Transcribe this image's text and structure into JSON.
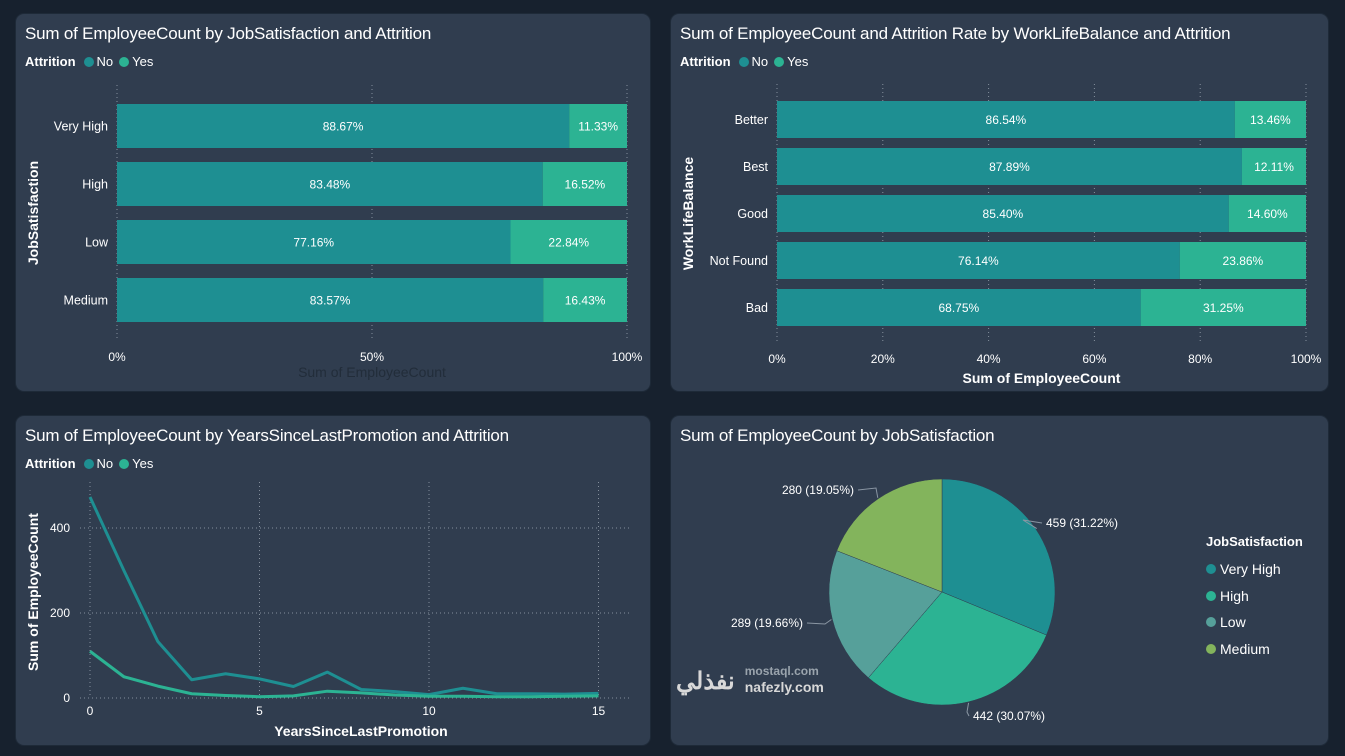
{
  "colors": {
    "no": "#1e8f92",
    "yes": "#2cb393",
    "very_high": "#1e8f92",
    "high": "#2cb393",
    "low": "#56a09a",
    "medium": "#83b45c",
    "grid": "#aab4bf",
    "axis_text": "#ffffff",
    "muted_axis_title": "#222d3a"
  },
  "chart_data": [
    {
      "id": "jobsat_attrition",
      "type": "bar",
      "orientation": "horizontal",
      "stacked": "100%",
      "title": "Sum of EmployeeCount by JobSatisfaction and Attrition",
      "legend_title": "Attrition",
      "legend": [
        "No",
        "Yes"
      ],
      "legend_position": "top-left",
      "xlabel": "Sum of EmployeeCount",
      "ylabel": "JobSatisfaction",
      "xticks": [
        "0%",
        "50%",
        "100%"
      ],
      "xlim": [
        0,
        100
      ],
      "categories": [
        "Very High",
        "High",
        "Low",
        "Medium"
      ],
      "series": [
        {
          "name": "No",
          "values": [
            88.67,
            83.48,
            77.16,
            83.57
          ],
          "labels": [
            "88.67%",
            "83.48%",
            "77.16%",
            "83.57%"
          ]
        },
        {
          "name": "Yes",
          "values": [
            11.33,
            16.52,
            22.84,
            16.43
          ],
          "labels": [
            "11.33%",
            "16.52%",
            "22.84%",
            "16.43%"
          ]
        }
      ],
      "grid": true
    },
    {
      "id": "wlb_attrition",
      "type": "bar",
      "orientation": "horizontal",
      "stacked": "100%",
      "title": "Sum of EmployeeCount and Attrition Rate by WorkLifeBalance and Attrition",
      "legend_title": "Attrition",
      "legend": [
        "No",
        "Yes"
      ],
      "legend_position": "top-left",
      "xlabel": "Sum of EmployeeCount",
      "ylabel": "WorkLifeBalance",
      "xticks": [
        "0%",
        "20%",
        "40%",
        "60%",
        "80%",
        "100%"
      ],
      "xlim": [
        0,
        100
      ],
      "categories": [
        "Better",
        "Best",
        "Good",
        "Not Found",
        "Bad"
      ],
      "series": [
        {
          "name": "No",
          "values": [
            86.54,
            87.89,
            85.4,
            76.14,
            68.75
          ],
          "labels": [
            "86.54%",
            "87.89%",
            "85.40%",
            "76.14%",
            "68.75%"
          ]
        },
        {
          "name": "Yes",
          "values": [
            13.46,
            12.11,
            14.6,
            23.86,
            31.25
          ],
          "labels": [
            "13.46%",
            "12.11%",
            "14.60%",
            "23.86%",
            "31.25%"
          ]
        }
      ],
      "grid": true
    },
    {
      "id": "promotion_attrition",
      "type": "line",
      "title": "Sum of EmployeeCount by YearsSinceLastPromotion and Attrition",
      "legend_title": "Attrition",
      "legend": [
        "No",
        "Yes"
      ],
      "legend_position": "top-left",
      "xlabel": "YearsSinceLastPromotion",
      "ylabel": "Sum of EmployeeCount",
      "x": [
        0,
        1,
        2,
        3,
        4,
        5,
        6,
        7,
        8,
        9,
        10,
        11,
        12,
        13,
        14,
        15
      ],
      "xticks": [
        "0",
        "5",
        "10",
        "15"
      ],
      "xtick_values": [
        0,
        5,
        10,
        15
      ],
      "yticks": [
        "0",
        "200",
        "400"
      ],
      "ytick_values": [
        0,
        200,
        400
      ],
      "xlim": [
        0,
        16
      ],
      "ylim": [
        0,
        490
      ],
      "series": [
        {
          "name": "No",
          "values": [
            473,
            300,
            133,
            43,
            57,
            45,
            27,
            61,
            20,
            15,
            8,
            23,
            10,
            10,
            9,
            11
          ]
        },
        {
          "name": "Yes",
          "values": [
            110,
            50,
            28,
            10,
            6,
            3,
            5,
            16,
            12,
            7,
            4,
            4,
            3,
            3,
            4,
            5
          ]
        }
      ],
      "grid": true
    },
    {
      "id": "jobsat_pie",
      "type": "pie",
      "title": "Sum of EmployeeCount by JobSatisfaction",
      "legend_title": "JobSatisfaction",
      "legend_position": "right",
      "categories": [
        "Very High",
        "High",
        "Low",
        "Medium"
      ],
      "values": [
        459,
        442,
        289,
        280
      ],
      "labels": [
        "459 (31.22%)",
        "442 (30.07%)",
        "289 (19.66%)",
        "280 (19.05%)"
      ]
    }
  ],
  "watermark": {
    "arabic": "نفذلي",
    "line1": "mostaql.com",
    "line2": "nafezly.com"
  }
}
